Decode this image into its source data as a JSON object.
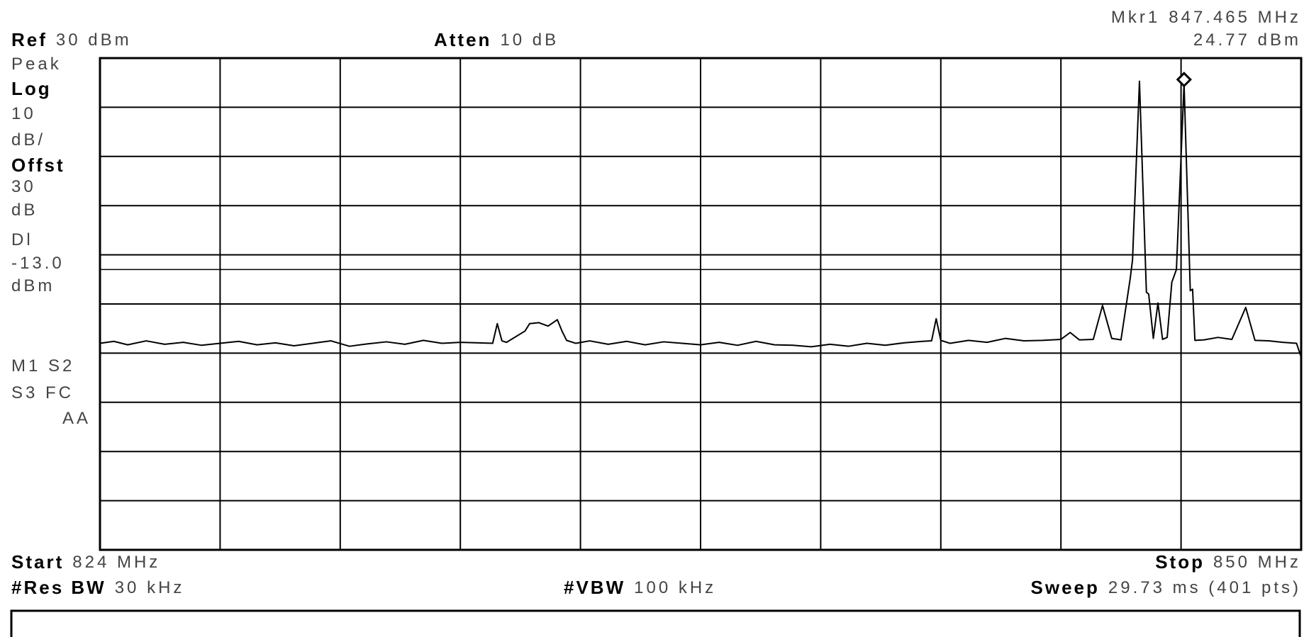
{
  "chart_data": {
    "type": "line",
    "color": "#000000",
    "grid": true,
    "marker": {
      "label": "Mkr1",
      "x_label": "847.465 MHz",
      "y_label": "24.77 dBm",
      "x": 847.465,
      "y": 24.77
    },
    "ref": {
      "label": "Ref",
      "value": "30 dBm"
    },
    "atten": {
      "label": "Atten",
      "value": "10 dB"
    },
    "detector": "Peak",
    "scale": [
      "Log",
      "10",
      "dB/"
    ],
    "offset": [
      "Offst",
      "30",
      "dB"
    ],
    "display_line": {
      "labels": [
        "Dl",
        "-13.0",
        "dBm"
      ],
      "value": -13
    },
    "status": [
      "M1  S2",
      "S3  FC",
      "AA"
    ],
    "start": {
      "label": "Start",
      "value": "824 MHz"
    },
    "stop": {
      "label": "Stop",
      "value": "850 MHz"
    },
    "res_bw": {
      "label": "#Res BW",
      "value": "30 kHz"
    },
    "vbw": {
      "label": "#VBW",
      "value": "100 kHz"
    },
    "sweep": {
      "label": "Sweep",
      "value": "29.73 ms (401 pts)"
    },
    "xlim": [
      824,
      850
    ],
    "ylim": [
      -70,
      30
    ],
    "xticks": [
      824,
      826.6,
      829.2,
      831.8,
      834.4,
      837,
      839.6,
      842.2,
      844.8,
      847.4,
      850
    ],
    "yticks": [
      30,
      20,
      10,
      0,
      -10,
      -20,
      -30,
      -40,
      -50,
      -60,
      -70
    ],
    "x": [
      824,
      824.3,
      824.6,
      825,
      825.4,
      825.8,
      826.2,
      826.6,
      827,
      827.4,
      827.8,
      828.2,
      828.6,
      829,
      829.4,
      829.8,
      830.2,
      830.6,
      831,
      831.4,
      831.8,
      832.2,
      832.5,
      832.6,
      832.7,
      832.8,
      833.2,
      833.3,
      833.5,
      833.7,
      833.9,
      834.0,
      834.1,
      834.3,
      834.6,
      835,
      835.4,
      835.8,
      836.2,
      836.6,
      837,
      837.4,
      837.8,
      838.2,
      838.6,
      839,
      839.4,
      839.8,
      840.2,
      840.6,
      841,
      841.4,
      841.8,
      842.0,
      842.1,
      842.2,
      842.4,
      842.8,
      843.2,
      843.6,
      844,
      844.4,
      844.8,
      845.0,
      845.2,
      845.5,
      845.7,
      845.9,
      846.1,
      846.3,
      846.35,
      846.5,
      846.65,
      846.7,
      846.8,
      846.9,
      847.0,
      847.1,
      847.2,
      847.3,
      847.465,
      847.6,
      847.65,
      847.7,
      847.9,
      848.2,
      848.5,
      848.8,
      849.0,
      849.3,
      849.6,
      849.9,
      850
    ],
    "values": [
      -28,
      -27.6,
      -28.3,
      -27.5,
      -28.2,
      -27.8,
      -28.4,
      -28,
      -27.6,
      -28.3,
      -27.9,
      -28.5,
      -28,
      -27.5,
      -28.6,
      -28.1,
      -27.7,
      -28.2,
      -27.4,
      -28,
      -27.8,
      -27.9,
      -28,
      -24,
      -27.5,
      -27.8,
      -25.5,
      -24,
      -23.8,
      -24.5,
      -23.2,
      -25.5,
      -27.4,
      -28,
      -27.5,
      -28.2,
      -27.6,
      -28.3,
      -27.7,
      -28,
      -28.3,
      -27.8,
      -28.4,
      -27.6,
      -28.3,
      -28.4,
      -28.7,
      -28.2,
      -28.6,
      -28,
      -28.4,
      -27.9,
      -27.6,
      -27.5,
      -23,
      -27.4,
      -28,
      -27.4,
      -27.8,
      -27,
      -27.5,
      -27.4,
      -27.2,
      -25.8,
      -27.3,
      -27.2,
      -20.3,
      -27,
      -27.3,
      -14.8,
      -11,
      25.3,
      -17.6,
      -18,
      -27,
      -19.8,
      -27.2,
      -26.8,
      -15.6,
      -13,
      24.77,
      -17.3,
      -17,
      -27.4,
      -27.3,
      -26.8,
      -27.2,
      -20.7,
      -27.4,
      -27.5,
      -27.8,
      -28,
      -30.8
    ]
  }
}
